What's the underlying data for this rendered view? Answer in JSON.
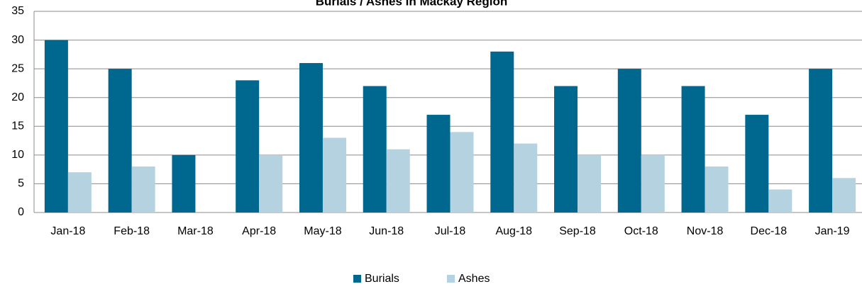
{
  "chart_data": {
    "type": "bar",
    "title": "Burials / Ashes in Mackay Region",
    "categories": [
      "Jan-18",
      "Feb-18",
      "Mar-18",
      "Apr-18",
      "May-18",
      "Jun-18",
      "Jul-18",
      "Aug-18",
      "Sep-18",
      "Oct-18",
      "Nov-18",
      "Dec-18",
      "Jan-19"
    ],
    "series": [
      {
        "name": "Burials",
        "color": "#00688f",
        "values": [
          30,
          25,
          10,
          23,
          26,
          22,
          17,
          28,
          22,
          25,
          22,
          17,
          25
        ]
      },
      {
        "name": "Ashes",
        "color": "#b4d2df",
        "values": [
          7,
          8,
          0,
          10,
          13,
          11,
          14,
          12,
          10,
          10,
          8,
          4,
          6
        ]
      }
    ],
    "ylim": [
      0,
      35
    ],
    "yticks": [
      0,
      5,
      10,
      15,
      20,
      25,
      30,
      35
    ],
    "grid": true,
    "legend": "bottom"
  }
}
